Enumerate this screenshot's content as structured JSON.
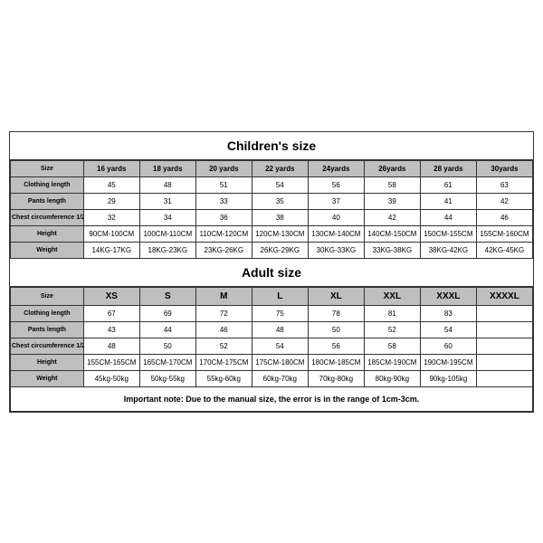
{
  "colors": {
    "border": "#333333",
    "header_bg": "#bfbfbf",
    "body_bg": "#ffffff",
    "text": "#000000"
  },
  "children": {
    "title": "Children's size",
    "row_labels": [
      "Size",
      "Clothing length",
      "Pants length",
      "Chest circumference 1/2",
      "Height",
      "Weight"
    ],
    "columns": [
      "16 yards",
      "18 yards",
      "20 yards",
      "22 yards",
      "24yards",
      "26yards",
      "28 yards",
      "30yards"
    ],
    "rows": [
      [
        "45",
        "48",
        "51",
        "54",
        "56",
        "58",
        "61",
        "63"
      ],
      [
        "29",
        "31",
        "33",
        "35",
        "37",
        "39",
        "41",
        "42"
      ],
      [
        "32",
        "34",
        "36",
        "38",
        "40",
        "42",
        "44",
        "46"
      ],
      [
        "90CM-100CM",
        "100CM-110CM",
        "110CM-120CM",
        "120CM-130CM",
        "130CM-140CM",
        "140CM-150CM",
        "150CM-155CM",
        "155CM-160CM"
      ],
      [
        "14KG-17KG",
        "18KG-23KG",
        "23KG-26KG",
        "26KG-29KG",
        "30KG-33KG",
        "33KG-38KG",
        "38KG-42KG",
        "42KG-45KG"
      ]
    ]
  },
  "adult": {
    "title": "Adult size",
    "row_labels": [
      "Size",
      "Clothing length",
      "Pants length",
      "Chest circumference 1/2",
      "Height",
      "Weight"
    ],
    "columns": [
      "XS",
      "S",
      "M",
      "L",
      "XL",
      "XXL",
      "XXXL",
      "XXXXL"
    ],
    "rows": [
      [
        "67",
        "69",
        "72",
        "75",
        "78",
        "81",
        "83",
        ""
      ],
      [
        "43",
        "44",
        "46",
        "48",
        "50",
        "52",
        "54",
        ""
      ],
      [
        "48",
        "50",
        "52",
        "54",
        "56",
        "58",
        "60",
        ""
      ],
      [
        "155CM-165CM",
        "165CM-170CM",
        "170CM-175CM",
        "175CM-180CM",
        "180CM-185CM",
        "185CM-190CM",
        "190CM-195CM",
        ""
      ],
      [
        "45kg-50kg",
        "50kg-55kg",
        "55kg-60kg",
        "60kg-70kg",
        "70kg-80kg",
        "80kg-90kg",
        "90kg-105kg",
        ""
      ]
    ]
  },
  "note": "Important note: Due to the manual size, the error is in the range of 1cm-3cm."
}
